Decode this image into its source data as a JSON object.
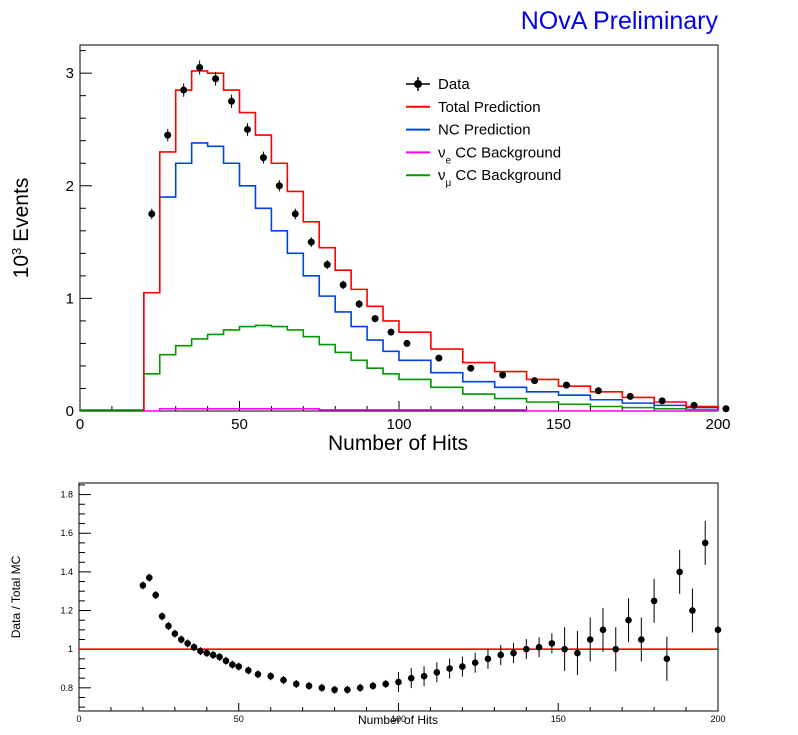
{
  "banner": "NOvA Preliminary",
  "chart_data": [
    {
      "type": "line",
      "panel": "main",
      "xlabel": "Number of Hits",
      "ylabel_base": "10",
      "ylabel_exp": "3",
      "ylabel_tail": " Events",
      "xlim": [
        0,
        200
      ],
      "ylim": [
        0,
        3.25
      ],
      "x_ticks": [
        "0",
        "50",
        "100",
        "150",
        "200"
      ],
      "y_ticks": [
        "0",
        "1",
        "2",
        "3"
      ],
      "legend_position": "top-right",
      "legend": [
        {
          "label": "Data",
          "color": "#000000",
          "style": "points"
        },
        {
          "label": "Total Prediction",
          "color": "#ff0000",
          "style": "line"
        },
        {
          "label": "NC Prediction",
          "color": "#0044dd",
          "style": "line"
        },
        {
          "nu": "ν",
          "sub": "e",
          "label": " CC Background",
          "color": "#ff00ff",
          "style": "line"
        },
        {
          "nu": "ν",
          "sub": "μ",
          "label": " CC Background",
          "color": "#009900",
          "style": "line"
        }
      ],
      "x": [
        20,
        25,
        30,
        35,
        40,
        45,
        50,
        55,
        60,
        65,
        70,
        75,
        80,
        85,
        90,
        95,
        100,
        110,
        120,
        130,
        140,
        150,
        160,
        170,
        180,
        190,
        200
      ],
      "series": [
        {
          "name": "Data",
          "values": [
            1.75,
            2.45,
            2.85,
            3.05,
            2.95,
            2.75,
            2.5,
            2.25,
            2.0,
            1.75,
            1.5,
            1.3,
            1.12,
            0.95,
            0.82,
            0.7,
            0.6,
            0.47,
            0.38,
            0.32,
            0.27,
            0.23,
            0.18,
            0.13,
            0.09,
            0.05,
            0.02
          ]
        },
        {
          "name": "Total Prediction",
          "values": [
            1.05,
            2.3,
            2.85,
            3.02,
            3.0,
            2.85,
            2.65,
            2.45,
            2.2,
            1.95,
            1.68,
            1.45,
            1.25,
            1.08,
            0.93,
            0.8,
            0.7,
            0.55,
            0.43,
            0.35,
            0.28,
            0.22,
            0.17,
            0.12,
            0.08,
            0.04,
            0.02
          ]
        },
        {
          "name": "NC Prediction",
          "values": [
            1.05,
            1.9,
            2.2,
            2.38,
            2.35,
            2.2,
            2.0,
            1.8,
            1.6,
            1.4,
            1.2,
            1.02,
            0.88,
            0.75,
            0.63,
            0.53,
            0.45,
            0.34,
            0.26,
            0.21,
            0.17,
            0.14,
            0.1,
            0.07,
            0.05,
            0.03,
            0.01
          ]
        },
        {
          "name": "νe CC Background",
          "values": [
            0.0,
            0.02,
            0.02,
            0.02,
            0.02,
            0.02,
            0.02,
            0.02,
            0.02,
            0.02,
            0.02,
            0.01,
            0.01,
            0.01,
            0.01,
            0.01,
            0.01,
            0.01,
            0.01,
            0.01,
            0.0,
            0.0,
            0.0,
            0.0,
            0.0,
            0.0,
            0.0
          ]
        },
        {
          "name": "νμ CC Background",
          "values": [
            0.33,
            0.5,
            0.58,
            0.64,
            0.68,
            0.72,
            0.75,
            0.76,
            0.75,
            0.72,
            0.66,
            0.59,
            0.52,
            0.45,
            0.38,
            0.33,
            0.28,
            0.21,
            0.15,
            0.11,
            0.08,
            0.06,
            0.04,
            0.03,
            0.02,
            0.01,
            0.01
          ]
        }
      ]
    },
    {
      "type": "scatter",
      "panel": "ratio",
      "xlabel": "Number of Hits",
      "ylabel": "Data / Total MC",
      "xlim": [
        0,
        200
      ],
      "ylim": [
        0.68,
        1.86
      ],
      "x_ticks": [
        "0",
        "50",
        "100",
        "150",
        "200"
      ],
      "y_ticks": [
        "0.8",
        "1",
        "1.2",
        "1.4",
        "1.6",
        "1.8"
      ],
      "reference_line": 1.0,
      "reference_color": "#ff0000",
      "x": [
        20,
        22,
        24,
        26,
        28,
        30,
        32,
        34,
        36,
        38,
        40,
        42,
        44,
        46,
        48,
        50,
        53,
        56,
        60,
        64,
        68,
        72,
        76,
        80,
        84,
        88,
        92,
        96,
        100,
        104,
        108,
        112,
        116,
        120,
        124,
        128,
        132,
        136,
        140,
        144,
        148,
        152,
        156,
        160,
        164,
        168,
        172,
        176,
        180,
        184,
        188,
        192,
        196,
        200
      ],
      "values": [
        1.33,
        1.37,
        1.28,
        1.17,
        1.12,
        1.08,
        1.05,
        1.03,
        1.01,
        0.99,
        0.98,
        0.97,
        0.96,
        0.94,
        0.92,
        0.91,
        0.89,
        0.87,
        0.86,
        0.84,
        0.82,
        0.81,
        0.8,
        0.79,
        0.79,
        0.8,
        0.81,
        0.82,
        0.83,
        0.85,
        0.86,
        0.88,
        0.9,
        0.91,
        0.93,
        0.95,
        0.97,
        0.98,
        1.0,
        1.01,
        1.03,
        1.0,
        0.98,
        1.05,
        1.1,
        1.0,
        1.15,
        1.05,
        1.25,
        0.95,
        1.4,
        1.2,
        1.55,
        1.1
      ]
    }
  ]
}
